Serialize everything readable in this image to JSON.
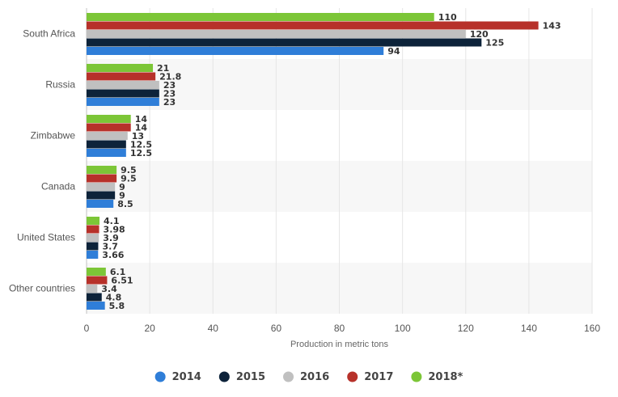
{
  "chart_data": {
    "type": "bar",
    "orientation": "horizontal",
    "categories": [
      "South Africa",
      "Russia",
      "Zimbabwe",
      "Canada",
      "United States",
      "Other countries"
    ],
    "series": [
      {
        "name": "2014",
        "color": "#2f7ed8",
        "values": [
          94,
          23,
          12.5,
          8.5,
          3.66,
          5.8
        ]
      },
      {
        "name": "2015",
        "color": "#0d233a",
        "values": [
          125,
          23,
          12.5,
          9,
          3.7,
          4.8
        ]
      },
      {
        "name": "2016",
        "color": "#c0c0c0",
        "values": [
          120,
          23,
          13,
          9,
          3.9,
          3.4
        ]
      },
      {
        "name": "2017",
        "color": "#b7312a",
        "values": [
          143,
          21.8,
          14,
          9.5,
          3.98,
          6.51
        ]
      },
      {
        "name": "2018*",
        "color": "#7cc637",
        "values": [
          110,
          21,
          14,
          9.5,
          4.1,
          6.1
        ]
      }
    ],
    "value_labels": [
      [
        "94",
        "23",
        "12.5",
        "8.5",
        "3.66",
        "5.8"
      ],
      [
        "125",
        "23",
        "12.5",
        "9",
        "3.7",
        "4.8"
      ],
      [
        "120",
        "23",
        "13",
        "9",
        "3.9",
        "3.4"
      ],
      [
        "143",
        "21.8",
        "14",
        "9.5",
        "3.98",
        "6.51"
      ],
      [
        "110",
        "21",
        "14",
        "9.5",
        "4.1",
        "6.1"
      ]
    ],
    "xlabel": "Production in metric tons",
    "xlim": [
      0,
      160
    ],
    "xticks": [
      0,
      20,
      40,
      60,
      80,
      100,
      120,
      140,
      160
    ],
    "legend_position": "bottom-center",
    "grid": true
  }
}
